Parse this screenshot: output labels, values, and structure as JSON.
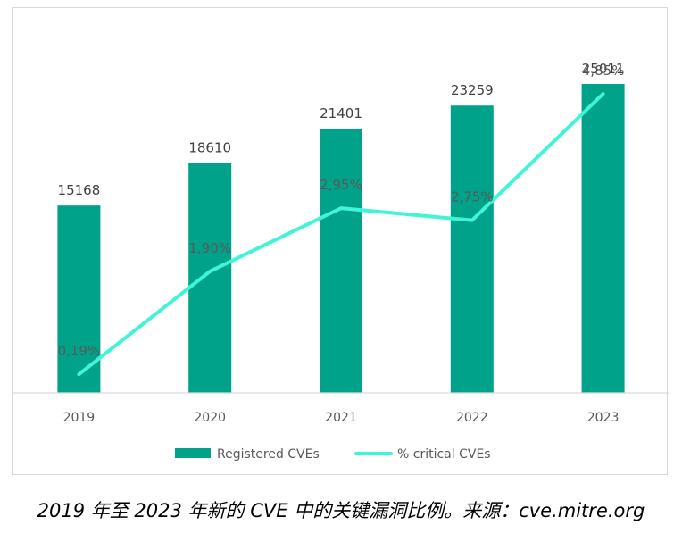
{
  "chart_data": {
    "type": "bar",
    "categories": [
      "2019",
      "2020",
      "2021",
      "2022",
      "2023"
    ],
    "series": [
      {
        "name": "Registered CVEs",
        "type": "bar",
        "values": [
          15168,
          18610,
          21401,
          23259,
          25011
        ],
        "labels": [
          "15168",
          "18610",
          "21401",
          "23259",
          "25011"
        ],
        "color": "#00a38a"
      },
      {
        "name": "% critical CVEs",
        "type": "line",
        "values": [
          0.19,
          1.9,
          2.95,
          2.75,
          4.85
        ],
        "labels": [
          "0,19%",
          "1,90%",
          "2,95%",
          "2,75%",
          "4,85%"
        ],
        "color": "#3ff5d8"
      }
    ],
    "legend_position": "bottom",
    "grid": false
  },
  "caption": "2019 年至 2023 年新的 CVE 中的关键漏洞比例。来源：cve.mitre.org"
}
